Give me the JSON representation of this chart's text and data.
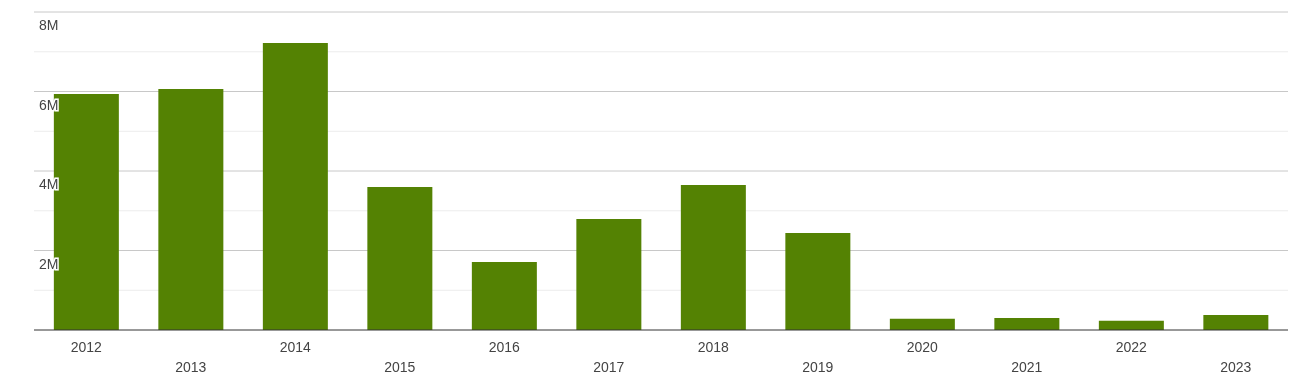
{
  "chart_data": {
    "type": "bar",
    "categories": [
      "2012",
      "2013",
      "2014",
      "2015",
      "2016",
      "2017",
      "2018",
      "2019",
      "2020",
      "2021",
      "2022",
      "2023"
    ],
    "values": [
      5940000,
      6060000,
      7220000,
      3600000,
      1710000,
      2790000,
      3650000,
      2440000,
      280000,
      300000,
      230000,
      380000
    ],
    "color": "#548203",
    "ylim": [
      0,
      8000000
    ],
    "yticks": [
      {
        "value": 0,
        "label": null
      },
      {
        "value": 1000000,
        "label": null
      },
      {
        "value": 2000000,
        "label": "2M"
      },
      {
        "value": 3000000,
        "label": null
      },
      {
        "value": 4000000,
        "label": "4M"
      },
      {
        "value": 5000000,
        "label": null
      },
      {
        "value": 6000000,
        "label": "6M"
      },
      {
        "value": 7000000,
        "label": null
      },
      {
        "value": 8000000,
        "label": "8M"
      }
    ],
    "grid": "y"
  }
}
